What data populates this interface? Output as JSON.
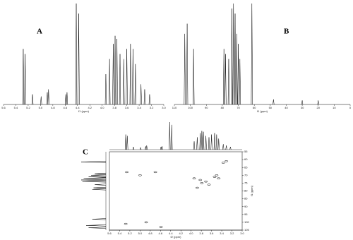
{
  "chart_data": [
    {
      "type": "spectrum",
      "label": "A",
      "xlabel": "f1 (ppm)",
      "x": [
        5.28,
        5.25,
        5.13,
        4.99,
        4.89,
        4.87,
        4.59,
        4.57,
        4.42,
        4.38,
        3.94,
        3.88,
        3.82,
        3.79,
        3.76,
        3.71,
        3.65,
        3.6,
        3.54,
        3.5,
        3.46,
        3.37,
        3.31,
        3.23
      ],
      "values": [
        55,
        50,
        10,
        8,
        12,
        15,
        10,
        12,
        100,
        90,
        30,
        45,
        60,
        68,
        65,
        50,
        45,
        55,
        60,
        55,
        40,
        20,
        15,
        10
      ],
      "xlim": [
        5.6,
        3.0
      ],
      "ylim": [
        0,
        100
      ],
      "xticks": [
        5.6,
        5.4,
        5.2,
        {
          "value": 5,
          "label": "5.0"
        },
        4.8,
        4.6,
        4.4,
        4.2,
        {
          "value": 4,
          "label": "4.0"
        },
        3.8,
        3.6,
        3.4,
        3.2,
        {
          "value": 3,
          "label": "3.0"
        }
      ],
      "color": "#000000"
    },
    {
      "type": "spectrum",
      "label": "B",
      "xlabel": "f1 (ppm)",
      "x": [
        103.5,
        102,
        98,
        79,
        78,
        76,
        74,
        73,
        72,
        71,
        70,
        69,
        61.5,
        48,
        30,
        20
      ],
      "values": [
        70,
        80,
        55,
        55,
        50,
        45,
        95,
        100,
        90,
        70,
        60,
        45,
        100,
        5,
        4,
        4
      ],
      "xlim": [
        110,
        0
      ],
      "ylim": [
        0,
        100
      ],
      "xticks": [
        110,
        100,
        90,
        80,
        70,
        60,
        50,
        40,
        30,
        20,
        10,
        0
      ],
      "color": "#000000"
    },
    {
      "type": "hsqc",
      "label": "C",
      "xlabel": "f2 (ppm)",
      "ylabel": "f1 (ppm)",
      "x": [
        5.28,
        4.88,
        4.59,
        5.26,
        5.0,
        4.7,
        3.94,
        3.88,
        3.82,
        3.79,
        3.71,
        3.65,
        3.54,
        3.5,
        3.46,
        3.37,
        3.31
      ],
      "y": [
        101,
        100,
        103,
        68,
        70,
        68,
        72,
        78,
        73,
        75,
        74,
        76,
        71,
        70,
        72,
        62,
        61
      ],
      "xlim": [
        5.6,
        3.0
      ],
      "ylim": [
        55,
        105
      ],
      "xticks": [
        5.6,
        5.4,
        5.2,
        {
          "value": 5,
          "label": "5.0"
        },
        4.8,
        4.6,
        4.4,
        4.2,
        {
          "value": 4,
          "label": "4.0"
        },
        3.8,
        3.6,
        3.4,
        3.2,
        {
          "value": 3,
          "label": "3.0"
        }
      ],
      "yticks": [
        55,
        60,
        65,
        70,
        75,
        80,
        85,
        90,
        95,
        100,
        105
      ],
      "color": "#000000"
    }
  ]
}
